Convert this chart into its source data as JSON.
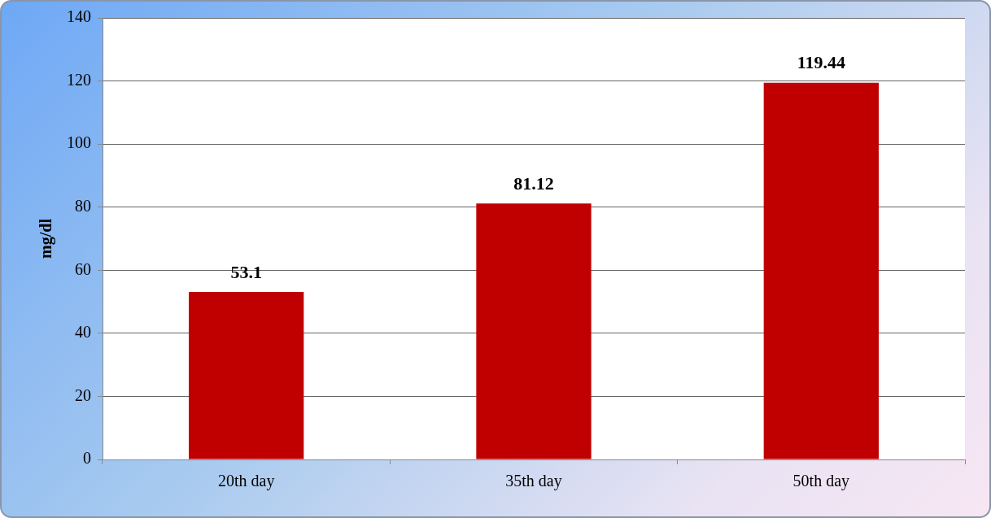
{
  "chart_data": {
    "type": "bar",
    "ylabel": "mg/dl",
    "categories": [
      "20th day",
      "35th day",
      "50th day"
    ],
    "values": [
      53.1,
      81.12,
      119.44
    ],
    "color": "#c00000",
    "ylim": [
      0,
      140
    ],
    "yticks": [
      0,
      20,
      40,
      60,
      80,
      100,
      120,
      140
    ],
    "grid": "y",
    "data_labels": true,
    "legend": false
  }
}
